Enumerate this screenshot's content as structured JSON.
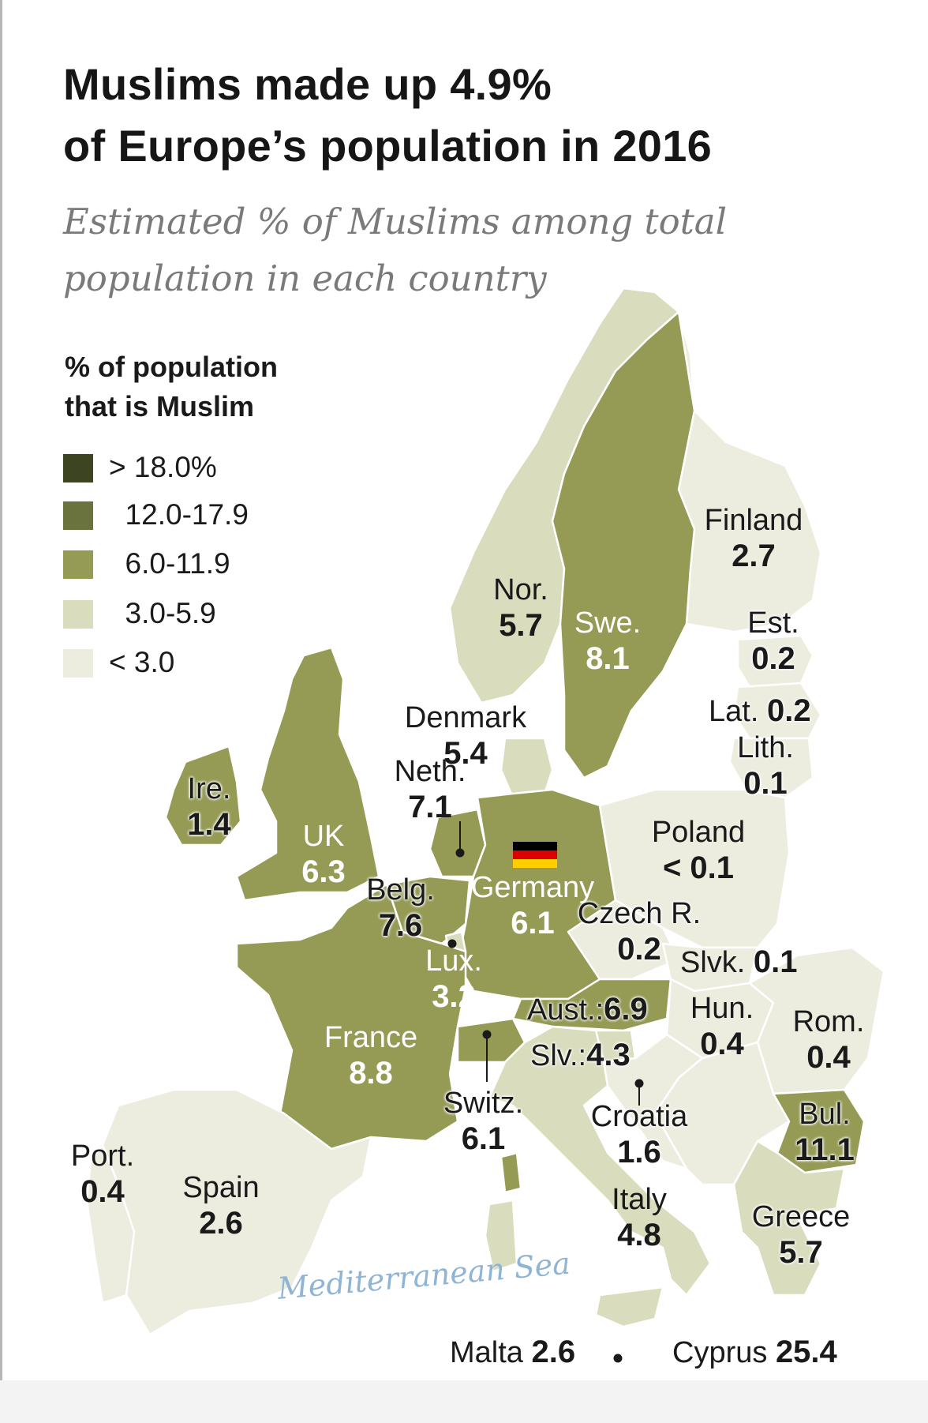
{
  "title": [
    "Muslims made up 4.9%",
    "of Europe’s population in 2016"
  ],
  "subtitle": [
    "Estimated % of Muslims among total",
    "population in each country"
  ],
  "legend": {
    "title": [
      "% of population",
      "that is Muslim"
    ],
    "items": [
      {
        "label": "> 18.0%",
        "color": "#3d4421"
      },
      {
        "label": "  12.0-17.9",
        "color": "#6a723d"
      },
      {
        "label": "  6.0-11.9",
        "color": "#959a55"
      },
      {
        "label": "  3.0-5.9",
        "color": "#d9dcbd"
      },
      {
        "label": "< 3.0",
        "color": "#ececdf"
      }
    ]
  },
  "colors": {
    "sea": "#ffffff",
    "border": "#ffffff",
    "bin_6_12": "#959a55",
    "bin_3_6": "#d9dcbd",
    "bin_lt3": "#ececdf"
  },
  "countries": {
    "finland": {
      "name": "Finland",
      "value": "2.7"
    },
    "norway": {
      "name": "Nor.",
      "value": "5.7"
    },
    "sweden": {
      "name": "Swe.",
      "value": "8.1"
    },
    "estonia": {
      "name": "Est.",
      "value": "0.2"
    },
    "latvia": {
      "name": "Lat.",
      "value": "0.2"
    },
    "lithuania": {
      "name": "Lith.",
      "value": "0.1"
    },
    "denmark": {
      "name": "Denmark",
      "value": "5.4"
    },
    "netherlands": {
      "name": "Neth.",
      "value": "7.1"
    },
    "ireland": {
      "name": "Ire.",
      "value": "1.4"
    },
    "uk": {
      "name": "UK",
      "value": "6.3"
    },
    "poland": {
      "name": "Poland",
      "value": "< 0.1"
    },
    "belgium": {
      "name": "Belg.",
      "value": "7.6"
    },
    "germany": {
      "name": "Germany",
      "value": "6.1"
    },
    "czech": {
      "name": "Czech R.",
      "value": "0.2"
    },
    "slovakia": {
      "name": "Slvk.",
      "value": "0.1"
    },
    "luxembourg": {
      "name": "Lux.",
      "value": "3.2"
    },
    "austria": {
      "name": "Aust.:",
      "value": "6.9"
    },
    "hungary": {
      "name": "Hun.",
      "value": "0.4"
    },
    "romania": {
      "name": "Rom.",
      "value": "0.4"
    },
    "france": {
      "name": "France",
      "value": "8.8"
    },
    "slovenia": {
      "name": "Slv.:",
      "value": "4.3"
    },
    "switzerland": {
      "name": "Switz.",
      "value": "6.1"
    },
    "croatia": {
      "name": "Croatia",
      "value": "1.6"
    },
    "bulgaria": {
      "name": "Bul.",
      "value": "11.1"
    },
    "portugal": {
      "name": "Port.",
      "value": "0.4"
    },
    "spain": {
      "name": "Spain",
      "value": "2.6"
    },
    "italy": {
      "name": "Italy",
      "value": "4.8"
    },
    "greece": {
      "name": "Greece",
      "value": "5.7"
    },
    "malta": {
      "name": "Malta",
      "value": "2.6"
    },
    "cyprus": {
      "name": "Cyprus",
      "value": "25.4"
    }
  },
  "sea_label": "Mediterranean Sea"
}
